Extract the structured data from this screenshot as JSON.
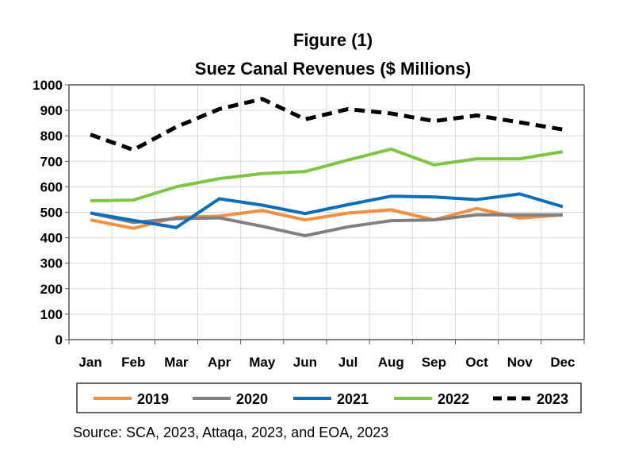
{
  "chart_data": {
    "type": "line",
    "title": "Figure (1)",
    "subtitle": "Suez Canal Revenues ($ Millions)",
    "xlabel": "",
    "ylabel": "",
    "ylim": [
      0,
      1000
    ],
    "yticks": [
      0,
      100,
      200,
      300,
      400,
      500,
      600,
      700,
      800,
      900,
      1000
    ],
    "grid": true,
    "legend": "bottom",
    "categories": [
      "Jan",
      "Feb",
      "Mar",
      "Apr",
      "May",
      "Jun",
      "Jul",
      "Aug",
      "Sep",
      "Oct",
      "Nov",
      "Dec"
    ],
    "series": [
      {
        "name": "2019",
        "color": "#F58F3F",
        "dashed": false,
        "values": [
          470,
          437,
          480,
          485,
          507,
          470,
          497,
          510,
          470,
          515,
          477,
          490
        ]
      },
      {
        "name": "2020",
        "color": "#808080",
        "dashed": false,
        "values": [
          497,
          460,
          475,
          478,
          445,
          408,
          443,
          467,
          470,
          490,
          490,
          490
        ]
      },
      {
        "name": "2021",
        "color": "#0A6EBD",
        "dashed": false,
        "values": [
          497,
          468,
          440,
          553,
          528,
          495,
          530,
          563,
          560,
          550,
          572,
          522
        ]
      },
      {
        "name": "2022",
        "color": "#7DC643",
        "dashed": false,
        "values": [
          545,
          548,
          600,
          632,
          652,
          660,
          705,
          748,
          686,
          710,
          710,
          738
        ]
      },
      {
        "name": "2023",
        "color": "#000000",
        "dashed": true,
        "values": [
          805,
          745,
          835,
          905,
          945,
          865,
          905,
          888,
          858,
          880,
          853,
          825
        ]
      }
    ],
    "source": "Source: SCA, 2023, Attaqa, 2023, and  EOA, 2023"
  }
}
